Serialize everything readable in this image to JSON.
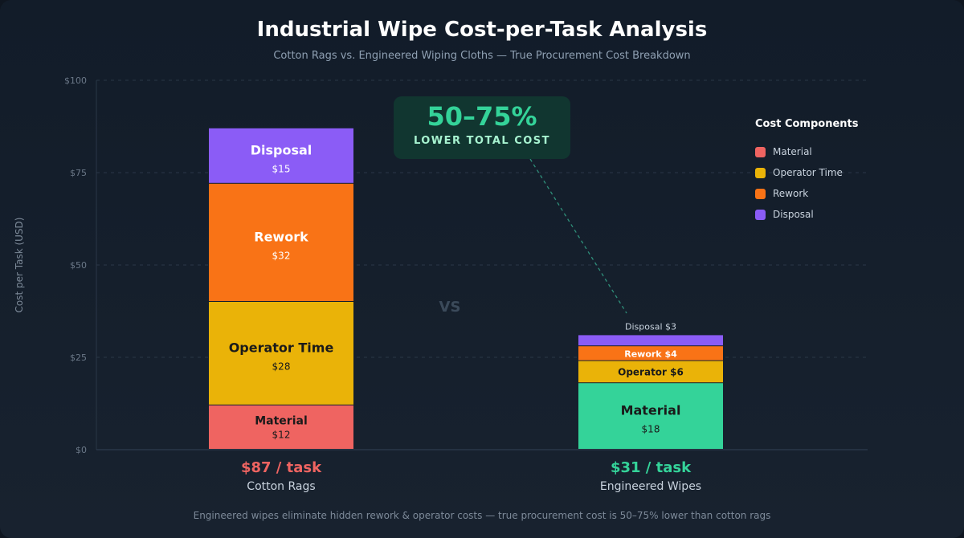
{
  "title": "Industrial Wipe Cost-per-Task Analysis",
  "subtitle": "Cotton Rags vs. Engineered Wiping Cloths — True Procurement Cost Breakdown",
  "footer": "Engineered wipes eliminate hidden rework & operator costs — true procurement cost is 50–75% lower than cotton rags",
  "callout": {
    "value": "50–75%",
    "label": "LOWER TOTAL COST"
  },
  "vs_label": "VS",
  "legend": {
    "title": "Cost Components",
    "items": [
      {
        "label": "Material",
        "color": "#ef6461"
      },
      {
        "label": "Operator Time",
        "color": "#eab308"
      },
      {
        "label": "Rework",
        "color": "#f97316"
      },
      {
        "label": "Disposal",
        "color": "#8b5cf6"
      }
    ]
  },
  "chart_data": {
    "type": "bar",
    "stacked": true,
    "title": "Industrial Wipe Cost-per-Task Analysis",
    "ylabel": "Cost per Task (USD)",
    "ylim": [
      0,
      100
    ],
    "yticks": [
      0,
      25,
      50,
      75,
      100
    ],
    "ytick_labels": [
      "$0",
      "$25",
      "$50",
      "$75",
      "$100"
    ],
    "grid": true,
    "legend_placement": "top-right",
    "categories": [
      "Cotton Rags",
      "Engineered Wipes"
    ],
    "totals": [
      87,
      31
    ],
    "total_labels": [
      "$87 / task",
      "$31 / task"
    ],
    "total_colors": [
      "#ef6461",
      "#34d399"
    ],
    "bars": [
      {
        "category": "Cotton Rags",
        "segments": [
          {
            "component": "Material",
            "value": 12,
            "label": "Material",
            "value_label": "$12",
            "color": "#ef6461",
            "text_color": "#1a1a1a"
          },
          {
            "component": "Operator Time",
            "value": 28,
            "label": "Operator Time",
            "value_label": "$28",
            "color": "#eab308",
            "text_color": "#1a1a1a"
          },
          {
            "component": "Rework",
            "value": 32,
            "label": "Rework",
            "value_label": "$32",
            "color": "#f97316",
            "text_color": "#ffffff"
          },
          {
            "component": "Disposal",
            "value": 15,
            "label": "Disposal",
            "value_label": "$15",
            "color": "#8b5cf6",
            "text_color": "#ffffff"
          }
        ]
      },
      {
        "category": "Engineered Wipes",
        "segments": [
          {
            "component": "Material",
            "value": 18,
            "label": "Material",
            "value_label": "$18",
            "color": "#34d399",
            "text_color": "#1a1a1a"
          },
          {
            "component": "Operator Time",
            "value": 6,
            "label": "Operator $6",
            "value_label": "",
            "color": "#eab308",
            "text_color": "#1a1a1a"
          },
          {
            "component": "Rework",
            "value": 4,
            "label": "Rework $4",
            "value_label": "",
            "color": "#f97316",
            "text_color": "#ffffff"
          },
          {
            "component": "Disposal",
            "value": 3,
            "label": "Disposal $3",
            "value_label": "",
            "color": "#8b5cf6",
            "text_color": "#c9d3de",
            "label_outside": true
          }
        ]
      }
    ]
  }
}
